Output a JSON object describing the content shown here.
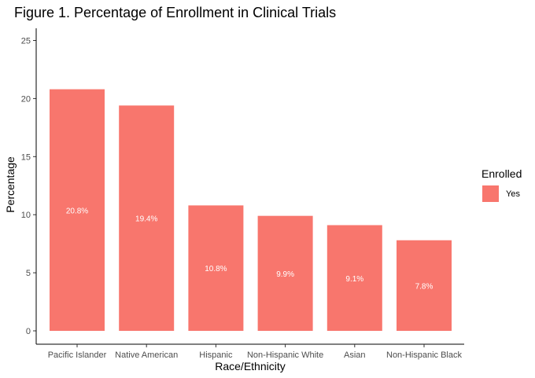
{
  "chart_data": {
    "type": "bar",
    "title": "Figure 1. Percentage of Enrollment in Clinical Trials",
    "xlabel": "Race/Ethnicity",
    "ylabel": "Percentage",
    "categories": [
      "Pacific Islander",
      "Native American",
      "Hispanic",
      "Non-Hispanic White",
      "Asian",
      "Non-Hispanic Black"
    ],
    "series": [
      {
        "name": "Yes",
        "values": [
          20.8,
          19.4,
          10.8,
          9.9,
          9.1,
          7.8
        ],
        "labels": [
          "20.8%",
          "19.4%",
          "10.8%",
          "9.9%",
          "9.1%",
          "7.8%"
        ],
        "color": "#F8766D"
      }
    ],
    "ylim": [
      0,
      26
    ],
    "yticks": [
      0,
      5,
      10,
      15,
      20,
      25
    ],
    "legend": {
      "title": "Enrolled",
      "position": "right"
    },
    "grid": false
  }
}
